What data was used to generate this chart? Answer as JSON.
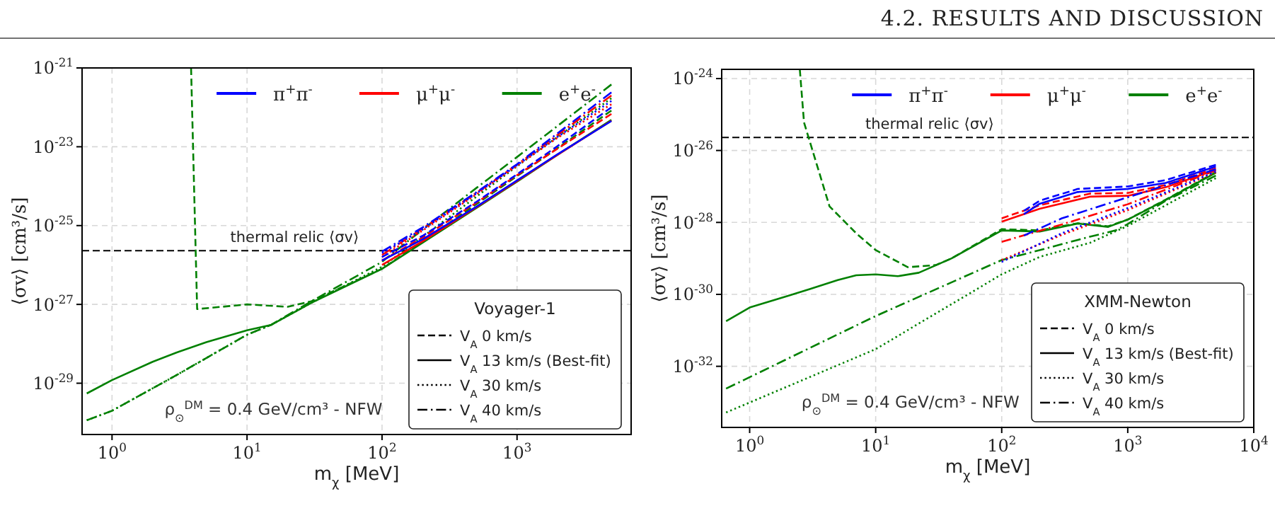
{
  "chart_data": [
    {
      "type": "line",
      "xlabel": "m$_{χ}$ [MeV]",
      "ylabel": "⟨σv⟩ [cm³/s]",
      "legend_title": "Voyager-1",
      "log": "xy",
      "grid": true,
      "xlim": [
        0.6,
        7000
      ],
      "xticks": [
        {
          "value": 1,
          "label": "10$^{0}$"
        },
        {
          "value": 10,
          "label": "10$^{1}$"
        },
        {
          "value": 100,
          "label": "10$^{2}$"
        },
        {
          "value": 1000,
          "label": "10$^{3}$"
        }
      ],
      "ylim": [
        5e-31,
        1e-21
      ],
      "legend": "bottom right",
      "yticks": [
        {
          "value": 1e-29,
          "label": "10$^{-29}$"
        },
        {
          "value": 1e-27,
          "label": "10$^{-27}$"
        },
        {
          "value": 1e-25,
          "label": "10$^{-25}$"
        },
        {
          "value": 1e-23,
          "label": "10$^{-23}$"
        },
        {
          "value": 1e-21,
          "label": "10$^{-21}$"
        }
      ],
      "ref_lines": [
        {
          "axis": "y",
          "value": 2.3e-26,
          "label": "thermal relic ⟨σv⟩",
          "color": "#000000",
          "line_style": "dashed"
        }
      ],
      "annotations": [
        "ρ$_{⊙}$$^{DM}$ = 0.4 GeV/cm³ - NFW",
        "4.2. RESULTS AND DISCUSSION"
      ],
      "series": [
        {
          "color": "#0000ff",
          "line_style": "dashed",
          "x": [
            100,
            200,
            500,
            1000,
            2000,
            5000
          ],
          "values": [
            1.6e-26,
            5.5e-26,
            4e-25,
            2e-24,
            1.05e-23,
            1e-22
          ]
        },
        {
          "name": "π$^{+}$π$^{-}$",
          "color": "#0000ff",
          "line_style": "solid",
          "x": [
            100,
            200,
            500,
            1000,
            2000,
            5000
          ],
          "values": [
            1.3e-26,
            4.5e-26,
            3e-25,
            1.4e-24,
            6.5e-24,
            4.5e-23
          ]
        },
        {
          "color": "#0000ff",
          "line_style": "dotted",
          "x": [
            100,
            200,
            500,
            1000,
            2000,
            5000
          ],
          "values": [
            2e-26,
            8e-26,
            6.5e-25,
            3.4e-24,
            1.8e-23,
            1.45e-22
          ]
        },
        {
          "color": "#0000ff",
          "line_style": "dashdot",
          "x": [
            100,
            200,
            500,
            1000,
            2000,
            5000
          ],
          "values": [
            2.2e-26,
            9e-26,
            7e-25,
            3.6e-24,
            2.2e-23,
            2.4e-22
          ]
        },
        {
          "color": "#ff0000",
          "line_style": "dashed",
          "x": [
            100,
            200,
            500,
            1000,
            2000,
            5000
          ],
          "values": [
            1.3e-26,
            5e-26,
            3.8e-25,
            1.9e-24,
            9e-24,
            6.8e-23
          ]
        },
        {
          "name": "μ$^{+}$μ$^{-}$",
          "color": "#ff0000",
          "line_style": "solid",
          "x": [
            100,
            200,
            500,
            1000,
            2000,
            5000
          ],
          "values": [
            1e-26,
            4e-26,
            2.9e-25,
            1.35e-24,
            6.3e-24,
            4.6e-23
          ]
        },
        {
          "color": "#ff0000",
          "line_style": "dotted",
          "x": [
            100,
            200,
            500,
            1000,
            2000,
            5000
          ],
          "values": [
            1.6e-26,
            7.5e-26,
            6.2e-25,
            3.3e-24,
            1.7e-23,
            1.2e-22
          ]
        },
        {
          "color": "#ff0000",
          "line_style": "dashdot",
          "x": [
            100,
            200,
            500,
            1000,
            2000,
            5000
          ],
          "values": [
            1.8e-26,
            8.5e-26,
            6.8e-25,
            3.5e-24,
            2e-23,
            2e-22
          ]
        },
        {
          "color": "#008000",
          "line_style": "dashed",
          "x": [
            3.85,
            4.27,
            10,
            20,
            30,
            100,
            200,
            500,
            1000,
            2000,
            5000
          ],
          "values": [
            1e-21,
            7.6e-28,
            1e-27,
            8.7e-28,
            1.2e-27,
            8e-27,
            4e-26,
            3.5e-25,
            1.8e-24,
            9.3e-24,
            8.3e-23
          ]
        },
        {
          "name": "e$^{+}$e$^{-}$",
          "color": "#008000",
          "line_style": "solid",
          "x": [
            0.65,
            1,
            2,
            3,
            5,
            10,
            15,
            30,
            100,
            200,
            500,
            1000,
            2000,
            5000
          ],
          "values": [
            5.5e-30,
            1.2e-29,
            3.5e-29,
            6e-29,
            1.1e-28,
            2.2e-28,
            3e-28,
            1.1e-27,
            8e-27,
            3.7e-26,
            2.8e-25,
            1.3e-24,
            6.3e-24,
            4.8e-23
          ]
        },
        {
          "color": "#008000",
          "line_style": "dotted",
          "x": [
            0.65,
            1,
            3,
            10,
            15,
            30,
            100,
            200,
            500,
            1000,
            2000,
            5000
          ],
          "values": [
            1.15e-30,
            2e-30,
            1.6e-29,
            1.7e-28,
            3e-28,
            1.1e-27,
            9e-27,
            5.2e-26,
            5.4e-25,
            3.2e-24,
            1.8e-23,
            1.7e-22
          ]
        },
        {
          "color": "#008000",
          "line_style": "dashdot",
          "x": [
            0.65,
            1,
            3,
            10,
            15,
            30,
            100,
            200,
            500,
            1000,
            2000,
            5000
          ],
          "values": [
            1.15e-30,
            2e-30,
            1.6e-29,
            1.7e-28,
            3e-28,
            1.2e-27,
            1.2e-26,
            8e-26,
            9e-25,
            5.5e-24,
            3.4e-23,
            3.8e-22
          ]
        },
        {
          "name": "V$_{A}$ 0 km/s",
          "color": "#000000",
          "line_style": "dashed"
        },
        {
          "name": "V$_{A}$ 13 km/s (Best-fit)",
          "color": "#000000",
          "line_style": "solid"
        },
        {
          "name": "V$_{A}$ 30 km/s",
          "color": "#000000",
          "line_style": "dotted"
        },
        {
          "name": "V$_{A}$ 40 km/s",
          "color": "#000000",
          "line_style": "dashdot"
        }
      ]
    },
    {
      "type": "line",
      "xlabel": "m$_{χ}$ [MeV]",
      "ylabel": "⟨σv⟩ [cm³/s]",
      "legend_title": "XMM-Newton",
      "log": "xy",
      "grid": true,
      "xlim": [
        0.6,
        10000
      ],
      "xticks": [
        {
          "value": 1,
          "label": "10$^{0}$"
        },
        {
          "value": 10,
          "label": "10$^{1}$"
        },
        {
          "value": 100,
          "label": "10$^{2}$"
        },
        {
          "value": 1000,
          "label": "10$^{3}$"
        },
        {
          "value": 10000,
          "label": "10$^{4}$"
        }
      ],
      "ylim": [
        2e-34,
        1.8e-24
      ],
      "legend": "bottom right",
      "yticks": [
        {
          "value": 1e-32,
          "label": "10$^{-32}$"
        },
        {
          "value": 1e-30,
          "label": "10$^{-30}$"
        },
        {
          "value": 1e-28,
          "label": "10$^{-28}$"
        },
        {
          "value": 1e-26,
          "label": "10$^{-26}$"
        },
        {
          "value": 1e-24,
          "label": "10$^{-24}$"
        }
      ],
      "ref_lines": [
        {
          "axis": "y",
          "value": 2.3e-26,
          "label": "thermal relic ⟨σv⟩",
          "color": "#000000",
          "line_style": "dashed"
        }
      ],
      "annotations": [
        "ρ$_{⊙}$$^{DM}$ = 0.4 GeV/cm³ - NFW"
      ],
      "series": [
        {
          "color": "#0000ff",
          "line_style": "dashed",
          "x": [
            150,
            200,
            400,
            1000,
            2000,
            5000
          ],
          "values": [
            2.1e-28,
            4e-28,
            8.5e-28,
            1e-27,
            1.5e-27,
            4e-27
          ]
        },
        {
          "name": "π$^{+}$π$^{-}$",
          "color": "#0000ff",
          "line_style": "solid",
          "x": [
            150,
            200,
            400,
            1000,
            2000,
            5000
          ],
          "values": [
            1.7e-28,
            3.3e-28,
            7e-28,
            8.5e-28,
            1.25e-27,
            3.6e-27
          ]
        },
        {
          "color": "#0000ff",
          "line_style": "dotted",
          "x": [
            100,
            300,
            1000,
            5000
          ],
          "values": [
            8e-30,
            5e-29,
            2.5e-28,
            2.6e-27
          ]
        },
        {
          "color": "#0000ff",
          "line_style": "dashdot",
          "x": [
            150,
            300,
            1000,
            5000
          ],
          "values": [
            4.3e-29,
            1.3e-28,
            5e-28,
            3e-27
          ]
        },
        {
          "color": "#ff0000",
          "line_style": "dashed",
          "x": [
            100,
            200,
            500,
            1000,
            2000,
            5000
          ],
          "values": [
            1.3e-28,
            3e-28,
            6.3e-28,
            6.6e-28,
            1.1e-27,
            3.2e-27
          ]
        },
        {
          "name": "μ$^{+}$μ$^{-}$",
          "color": "#ff0000",
          "line_style": "solid",
          "x": [
            100,
            200,
            500,
            1000,
            2000,
            5000
          ],
          "values": [
            1.05e-28,
            2.4e-28,
            5.2e-28,
            5.5e-28,
            9.5e-28,
            2.9e-27
          ]
        },
        {
          "color": "#ff0000",
          "line_style": "dotted",
          "x": [
            100,
            300,
            1000,
            5000
          ],
          "values": [
            9e-30,
            4.5e-29,
            2.2e-28,
            2.5e-27
          ]
        },
        {
          "color": "#ff0000",
          "line_style": "dashdot",
          "x": [
            100,
            300,
            1000,
            5000
          ],
          "values": [
            2.9e-29,
            8.8e-29,
            3.2e-28,
            2.8e-27
          ]
        },
        {
          "color": "#008000",
          "line_style": "dashed",
          "x": [
            2.5,
            2.7,
            4.3,
            7,
            10,
            18,
            30,
            40,
            100,
            200,
            400,
            700,
            1000,
            2000,
            5000
          ],
          "values": [
            1.8e-24,
            6e-26,
            2.8e-28,
            5e-29,
            1.7e-29,
            5.7e-30,
            6.5e-30,
            1e-29,
            6.5e-29,
            6e-29,
            9.5e-29,
            7.8e-29,
            1.2e-28,
            4.3e-28,
            2.5e-27
          ]
        },
        {
          "name": "e$^{+}$e$^{-}$",
          "color": "#008000",
          "line_style": "solid",
          "x": [
            0.65,
            1,
            2,
            3,
            5,
            7,
            10,
            15,
            22,
            40,
            100,
            200,
            400,
            700,
            1000,
            2000,
            5000
          ],
          "values": [
            1.8e-31,
            4.3e-31,
            9e-31,
            1.4e-30,
            2.5e-30,
            3.4e-30,
            3.6e-30,
            3.2e-30,
            4e-30,
            1e-29,
            6e-29,
            5.6e-29,
            9.3e-29,
            7.5e-29,
            1.2e-28,
            4.2e-28,
            2.4e-27
          ]
        },
        {
          "color": "#008000",
          "line_style": "dotted",
          "x": [
            0.65,
            10,
            100,
            200,
            500,
            1000,
            2000,
            5000
          ],
          "values": [
            5.2e-34,
            3e-32,
            3.6e-30,
            1.1e-29,
            2.7e-29,
            8e-29,
            3e-28,
            1.7e-27
          ]
        },
        {
          "color": "#008000",
          "line_style": "dashdot",
          "x": [
            0.65,
            10,
            100,
            200,
            500,
            800,
            1000,
            2000,
            5000
          ],
          "values": [
            2.4e-33,
            2.5e-31,
            9e-30,
            1.7e-29,
            4e-29,
            6e-29,
            9e-29,
            4e-28,
            2e-27
          ]
        },
        {
          "name": "V$_{A}$ 0 km/s",
          "color": "#000000",
          "line_style": "dashed"
        },
        {
          "name": "V$_{A}$ 13 km/s (Best-fit)",
          "color": "#000000",
          "line_style": "solid"
        },
        {
          "name": "V$_{A}$ 30 km/s",
          "color": "#000000",
          "line_style": "dotted"
        },
        {
          "name": "V$_{A}$ 40 km/s",
          "color": "#000000",
          "line_style": "dashdot"
        }
      ]
    }
  ]
}
